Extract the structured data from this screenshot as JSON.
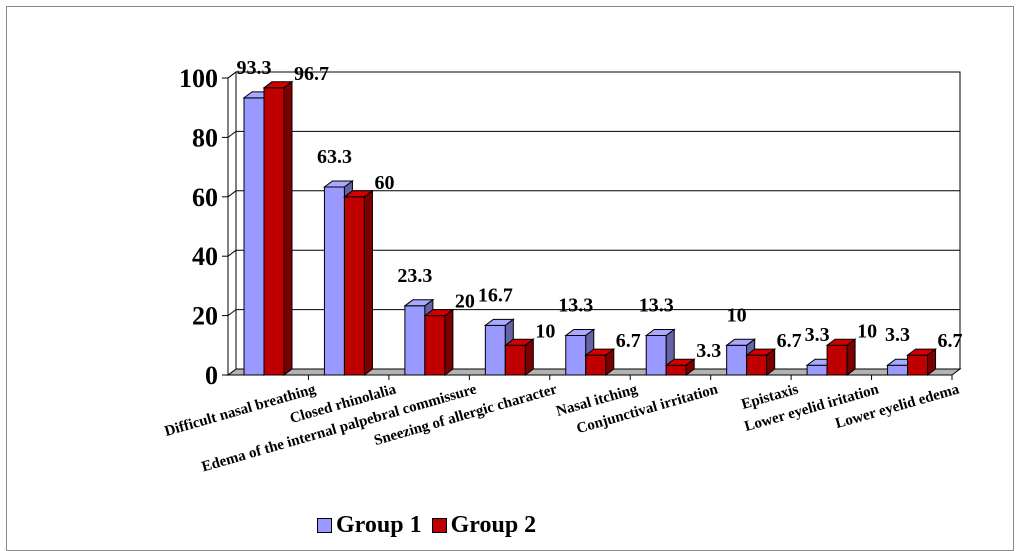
{
  "chart_data": {
    "type": "bar",
    "categories": [
      "Difficult nasal breathing",
      "Closed rhinolalia",
      "Edema of the internal palpebral commissure",
      "Sneezing of allergic character",
      "Nasal itching",
      "Conjunctival irritation",
      "Epistaxis",
      "Lower eyelid iritation",
      "Lower eyelid edema"
    ],
    "series": [
      {
        "name": "Group 1",
        "values": [
          93.3,
          63.3,
          23.3,
          16.7,
          13.3,
          13.3,
          10,
          3.3,
          3.3
        ],
        "labels": [
          "93.3",
          "63.3",
          "23.3",
          "16.7",
          "13.3",
          "13.3",
          "10",
          "3.3",
          "3.3"
        ],
        "color": "#9999ff"
      },
      {
        "name": "Group 2",
        "values": [
          96.7,
          60,
          20,
          10,
          6.7,
          3.3,
          6.7,
          10,
          6.7
        ],
        "labels": [
          "96.7",
          "60",
          "20",
          "10",
          "6.7",
          "3.3",
          "6.7",
          "10",
          "6.7"
        ],
        "color": "#c00000"
      }
    ],
    "yticks": [
      "0",
      "20",
      "40",
      "60",
      "80",
      "100"
    ],
    "ylim": [
      0,
      100
    ],
    "grid": true,
    "legend": "bottom",
    "style": "3d-clustered-bar"
  }
}
